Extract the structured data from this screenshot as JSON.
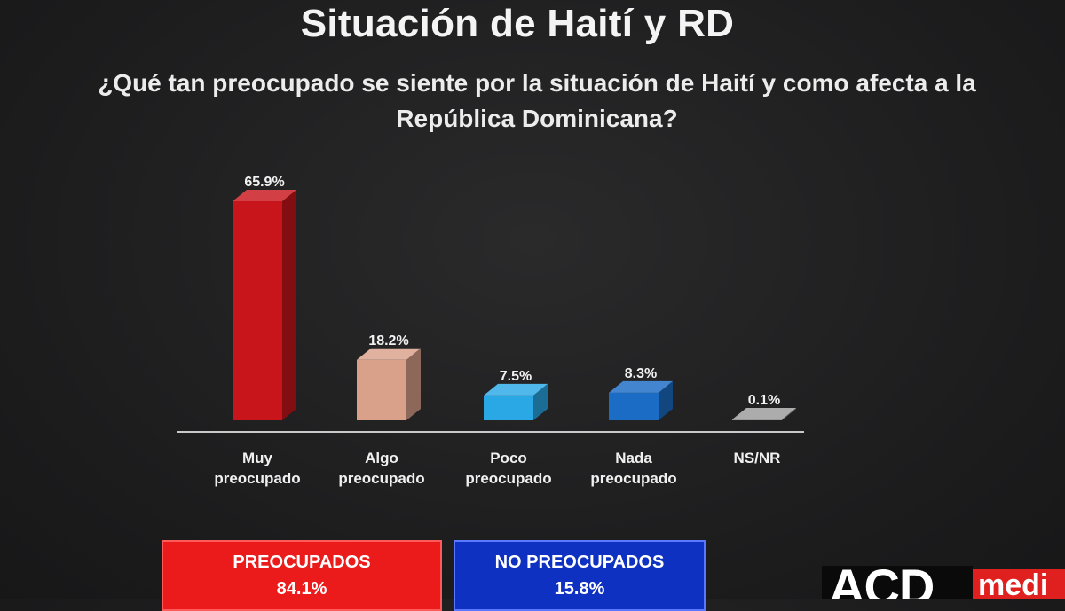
{
  "header": {
    "title": "Situación de Haití y RD",
    "question": "¿Qué tan preocupado se siente por la situación de Haití y como afecta a la República Dominicana?"
  },
  "chart_data": {
    "type": "bar",
    "categories": [
      [
        "Muy",
        "preocupado"
      ],
      [
        "Algo",
        "preocupado"
      ],
      [
        "Poco",
        "preocupado"
      ],
      [
        "Nada",
        "preocupado"
      ],
      [
        "NS/NR"
      ]
    ],
    "values": [
      65.9,
      18.2,
      7.5,
      8.3,
      0.1
    ],
    "value_labels": [
      "65.9%",
      "18.2%",
      "7.5%",
      "8.3%",
      "0.1%"
    ],
    "colors": [
      "#c8151b",
      "#d9a08a",
      "#2aa8e6",
      "#1a6cc4",
      "#9a9a9a"
    ],
    "style": "3d",
    "grid": false
  },
  "summary": {
    "preocupados": {
      "label": "PREOCUPADOS",
      "value": "84.1%",
      "color": "#ec1b1b"
    },
    "no_preocupados": {
      "label": "NO PREOCUPADOS",
      "value": "15.8%",
      "color": "#0f31c2"
    }
  },
  "logo": {
    "text": "ACD",
    "suffix": "medi"
  }
}
